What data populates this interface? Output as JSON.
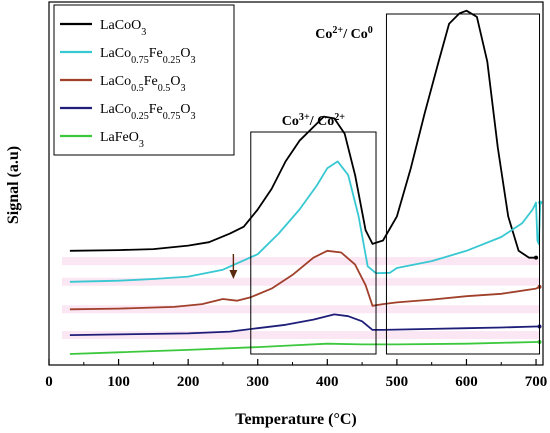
{
  "chart_data": {
    "type": "line",
    "title": "",
    "xlabel": "Temperature (°C)",
    "ylabel": "Signal (a.u)",
    "xlim": [
      0,
      710
    ],
    "xticks": [
      0,
      100,
      200,
      300,
      400,
      500,
      600,
      700
    ],
    "ylim": [
      0,
      1
    ],
    "grid": false,
    "legend_position": "top-left",
    "series": [
      {
        "name": "LaCoO3",
        "name_parts": [
          [
            "LaCoO",
            ""
          ],
          [
            "3",
            "sub"
          ]
        ],
        "color": "#000000",
        "points": [
          [
            30,
            0.3
          ],
          [
            100,
            0.302
          ],
          [
            150,
            0.305
          ],
          [
            200,
            0.315
          ],
          [
            230,
            0.325
          ],
          [
            260,
            0.35
          ],
          [
            280,
            0.37
          ],
          [
            300,
            0.42
          ],
          [
            320,
            0.48
          ],
          [
            340,
            0.56
          ],
          [
            360,
            0.62
          ],
          [
            380,
            0.66
          ],
          [
            395,
            0.69
          ],
          [
            410,
            0.685
          ],
          [
            425,
            0.64
          ],
          [
            440,
            0.52
          ],
          [
            455,
            0.36
          ],
          [
            465,
            0.32
          ],
          [
            480,
            0.33
          ],
          [
            500,
            0.4
          ],
          [
            520,
            0.54
          ],
          [
            540,
            0.7
          ],
          [
            560,
            0.85
          ],
          [
            575,
            0.96
          ],
          [
            590,
            0.99
          ],
          [
            600,
            0.998
          ],
          [
            615,
            0.98
          ],
          [
            630,
            0.85
          ],
          [
            645,
            0.6
          ],
          [
            660,
            0.4
          ],
          [
            675,
            0.3
          ],
          [
            690,
            0.28
          ],
          [
            700,
            0.28
          ]
        ]
      },
      {
        "name": "LaCo0.75Fe0.25O3",
        "name_parts": [
          [
            "LaCo",
            ""
          ],
          [
            "0.75",
            "sub"
          ],
          [
            "Fe",
            ""
          ],
          [
            "0.25",
            "sub"
          ],
          [
            "O",
            ""
          ],
          [
            "3",
            "sub"
          ]
        ],
        "color": "#38c8d2",
        "points": [
          [
            30,
            0.21
          ],
          [
            100,
            0.213
          ],
          [
            150,
            0.218
          ],
          [
            200,
            0.225
          ],
          [
            250,
            0.245
          ],
          [
            300,
            0.29
          ],
          [
            330,
            0.35
          ],
          [
            360,
            0.42
          ],
          [
            385,
            0.49
          ],
          [
            400,
            0.54
          ],
          [
            415,
            0.56
          ],
          [
            430,
            0.52
          ],
          [
            445,
            0.4
          ],
          [
            458,
            0.255
          ],
          [
            470,
            0.235
          ],
          [
            490,
            0.236
          ],
          [
            500,
            0.25
          ],
          [
            550,
            0.27
          ],
          [
            600,
            0.3
          ],
          [
            650,
            0.34
          ],
          [
            680,
            0.38
          ],
          [
            695,
            0.42
          ],
          [
            700,
            0.44
          ],
          [
            702,
            0.33
          ],
          [
            704,
            0.32
          ],
          [
            706,
            0.44
          ]
        ]
      },
      {
        "name": "LaCo0.5Fe0.5O3",
        "name_parts": [
          [
            "LaCo",
            ""
          ],
          [
            "0.5",
            "sub"
          ],
          [
            "Fe",
            ""
          ],
          [
            "0.5",
            "sub"
          ],
          [
            "O",
            ""
          ],
          [
            "3",
            "sub"
          ]
        ],
        "color": "#a0402a",
        "points": [
          [
            30,
            0.13
          ],
          [
            100,
            0.132
          ],
          [
            180,
            0.137
          ],
          [
            220,
            0.145
          ],
          [
            250,
            0.16
          ],
          [
            270,
            0.155
          ],
          [
            290,
            0.165
          ],
          [
            320,
            0.19
          ],
          [
            350,
            0.23
          ],
          [
            380,
            0.28
          ],
          [
            400,
            0.3
          ],
          [
            420,
            0.295
          ],
          [
            440,
            0.26
          ],
          [
            455,
            0.2
          ],
          [
            465,
            0.14
          ],
          [
            480,
            0.145
          ],
          [
            500,
            0.15
          ],
          [
            550,
            0.158
          ],
          [
            600,
            0.168
          ],
          [
            650,
            0.175
          ],
          [
            700,
            0.19
          ],
          [
            705,
            0.195
          ]
        ]
      },
      {
        "name": "LaCo0.25Fe0.75O3",
        "name_parts": [
          [
            "LaCo",
            ""
          ],
          [
            "0.25",
            "sub"
          ],
          [
            "Fe",
            ""
          ],
          [
            "0.75",
            "sub"
          ],
          [
            "O",
            ""
          ],
          [
            "3",
            "sub"
          ]
        ],
        "color": "#1f1f7a",
        "points": [
          [
            30,
            0.055
          ],
          [
            100,
            0.057
          ],
          [
            200,
            0.06
          ],
          [
            260,
            0.065
          ],
          [
            300,
            0.075
          ],
          [
            340,
            0.085
          ],
          [
            380,
            0.1
          ],
          [
            410,
            0.115
          ],
          [
            430,
            0.11
          ],
          [
            450,
            0.095
          ],
          [
            465,
            0.07
          ],
          [
            480,
            0.07
          ],
          [
            550,
            0.073
          ],
          [
            600,
            0.075
          ],
          [
            650,
            0.077
          ],
          [
            700,
            0.08
          ],
          [
            705,
            0.08
          ]
        ]
      },
      {
        "name": "LaFeO3",
        "name_parts": [
          [
            "LaFeO",
            ""
          ],
          [
            "3",
            "sub"
          ]
        ],
        "color": "#3cc83c",
        "points": [
          [
            30,
            0.0
          ],
          [
            100,
            0.005
          ],
          [
            200,
            0.012
          ],
          [
            300,
            0.02
          ],
          [
            350,
            0.025
          ],
          [
            400,
            0.03
          ],
          [
            450,
            0.028
          ],
          [
            500,
            0.028
          ],
          [
            600,
            0.03
          ],
          [
            700,
            0.035
          ],
          [
            705,
            0.035
          ]
        ]
      }
    ],
    "annotations": {
      "peak_low": {
        "text_parts": [
          [
            "Co",
            ""
          ],
          [
            "3+",
            "sup"
          ],
          [
            "/ Co",
            ""
          ],
          [
            "2+",
            "sup"
          ]
        ],
        "x_range": [
          290,
          470
        ]
      },
      "peak_high": {
        "text_parts": [
          [
            "Co",
            ""
          ],
          [
            "2+",
            "sup"
          ],
          [
            "/ Co",
            ""
          ],
          [
            "0",
            "sup"
          ]
        ],
        "x_range": [
          485,
          705
        ]
      },
      "arrow_x": 265
    }
  }
}
